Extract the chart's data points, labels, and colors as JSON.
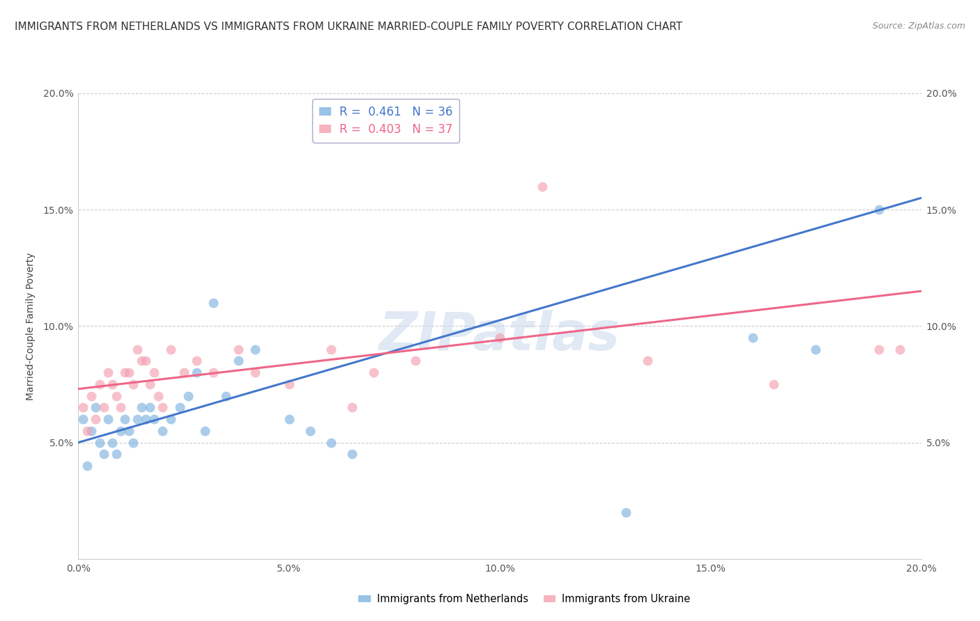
{
  "title": "IMMIGRANTS FROM NETHERLANDS VS IMMIGRANTS FROM UKRAINE MARRIED-COUPLE FAMILY POVERTY CORRELATION CHART",
  "source": "Source: ZipAtlas.com",
  "ylabel": "Married-Couple Family Poverty",
  "legend_labels": [
    "Immigrants from Netherlands",
    "Immigrants from Ukraine"
  ],
  "legend_r": [
    0.461,
    0.403
  ],
  "legend_n": [
    36,
    37
  ],
  "color_nl": "#7EB3E0",
  "color_ua": "#F4A0B0",
  "line_color_nl": "#4477CC",
  "line_color_ua": "#EE6688",
  "xlim": [
    0.0,
    0.2
  ],
  "ylim": [
    0.0,
    0.2
  ],
  "xticks": [
    0.0,
    0.05,
    0.1,
    0.15,
    0.2
  ],
  "yticks": [
    0.05,
    0.1,
    0.15,
    0.2
  ],
  "xtick_labels": [
    "0.0%",
    "5.0%",
    "10.0%",
    "15.0%",
    "20.0%"
  ],
  "ytick_labels": [
    "5.0%",
    "10.0%",
    "15.0%",
    "20.0%"
  ],
  "watermark": "ZIPatlas",
  "nl_x": [
    0.001,
    0.002,
    0.003,
    0.004,
    0.005,
    0.006,
    0.007,
    0.008,
    0.009,
    0.01,
    0.011,
    0.012,
    0.013,
    0.014,
    0.015,
    0.016,
    0.017,
    0.018,
    0.02,
    0.022,
    0.024,
    0.026,
    0.028,
    0.03,
    0.032,
    0.035,
    0.038,
    0.042,
    0.05,
    0.055,
    0.06,
    0.065,
    0.13,
    0.16,
    0.175,
    0.19
  ],
  "nl_y": [
    0.06,
    0.04,
    0.055,
    0.065,
    0.05,
    0.045,
    0.06,
    0.05,
    0.045,
    0.055,
    0.06,
    0.055,
    0.05,
    0.06,
    0.065,
    0.06,
    0.065,
    0.06,
    0.055,
    0.06,
    0.065,
    0.07,
    0.08,
    0.055,
    0.11,
    0.07,
    0.085,
    0.09,
    0.06,
    0.055,
    0.05,
    0.045,
    0.02,
    0.095,
    0.09,
    0.15
  ],
  "ua_x": [
    0.001,
    0.002,
    0.003,
    0.004,
    0.005,
    0.006,
    0.007,
    0.008,
    0.009,
    0.01,
    0.011,
    0.012,
    0.013,
    0.014,
    0.015,
    0.016,
    0.017,
    0.018,
    0.019,
    0.02,
    0.022,
    0.025,
    0.028,
    0.032,
    0.038,
    0.042,
    0.05,
    0.06,
    0.065,
    0.07,
    0.08,
    0.1,
    0.11,
    0.135,
    0.165,
    0.19,
    0.195
  ],
  "ua_y": [
    0.065,
    0.055,
    0.07,
    0.06,
    0.075,
    0.065,
    0.08,
    0.075,
    0.07,
    0.065,
    0.08,
    0.08,
    0.075,
    0.09,
    0.085,
    0.085,
    0.075,
    0.08,
    0.07,
    0.065,
    0.09,
    0.08,
    0.085,
    0.08,
    0.09,
    0.08,
    0.075,
    0.09,
    0.065,
    0.08,
    0.085,
    0.095,
    0.16,
    0.085,
    0.075,
    0.09,
    0.09
  ],
  "background_color": "#FFFFFF",
  "grid_color": "#CCCCCC",
  "title_fontsize": 11,
  "axis_fontsize": 10,
  "tick_fontsize": 10,
  "marker_size": 100
}
